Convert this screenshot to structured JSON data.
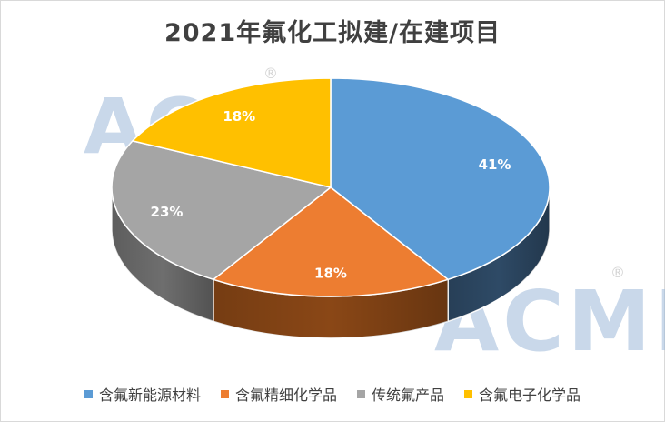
{
  "chart_data": {
    "type": "pie",
    "variant": "3d",
    "title": "2021年氟化工拟建/在建项目",
    "categories": [
      "含氟新能源材料",
      "含氟精细化学品",
      "传统氟产品",
      "含氟电子化学品"
    ],
    "values": [
      41,
      18,
      23,
      18
    ],
    "labels": [
      "41%",
      "18%",
      "23%",
      "18%"
    ],
    "colors": [
      "#5B9BD5",
      "#ED7D31",
      "#A5A5A5",
      "#FFC000"
    ],
    "side_colors": [
      "#2E4A66",
      "#8A4716",
      "#6E6E6E",
      "#A67C00"
    ],
    "legend_position": "bottom",
    "start_angle_deg": 90,
    "direction": "clockwise"
  },
  "watermark": {
    "text": "ACMI",
    "colors": [
      "#9DB9D9",
      "#E8A9A9"
    ]
  }
}
